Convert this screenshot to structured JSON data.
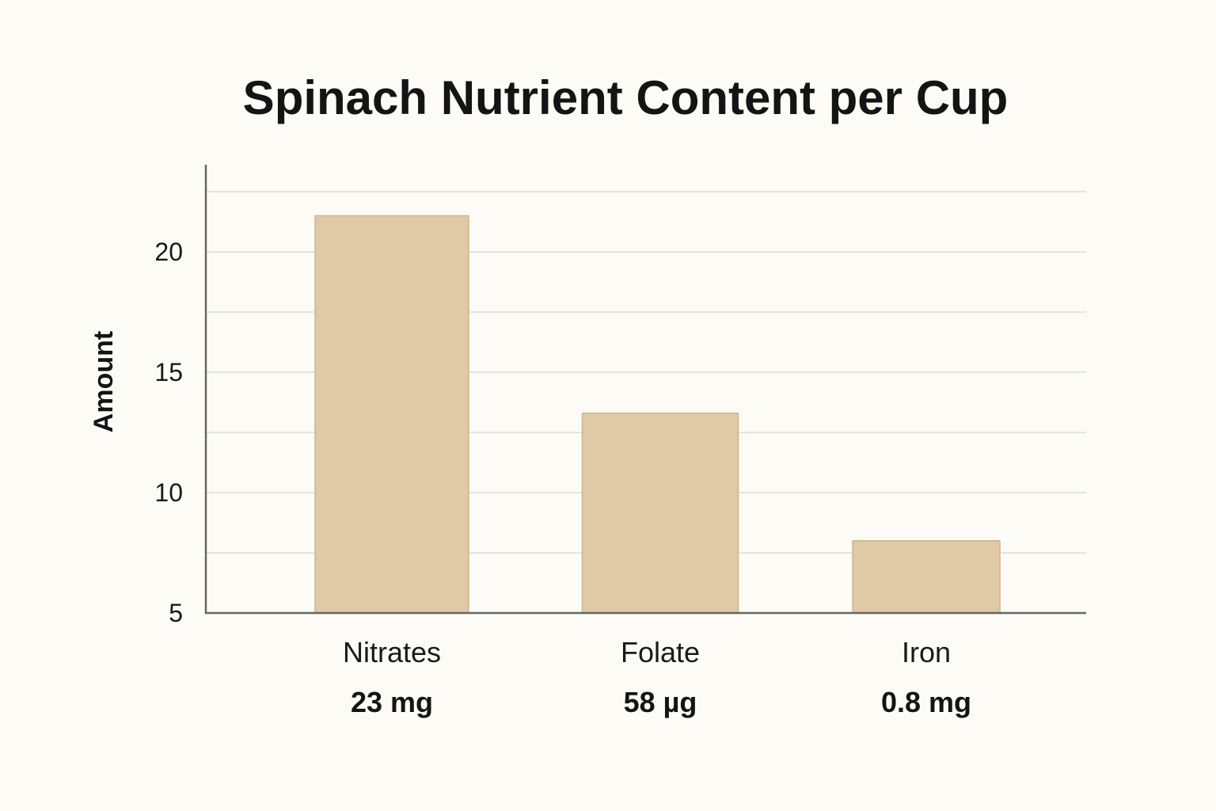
{
  "chart_data": {
    "type": "bar",
    "title": "Spinach Nutrient Content per Cup",
    "xlabel": "",
    "ylabel": "Amount",
    "categories": [
      "Nitrates",
      "Folate",
      "Iron"
    ],
    "values": [
      21.5,
      13.3,
      8.0
    ],
    "data_labels": [
      "23 mg",
      "58 µg",
      "0.8 mg"
    ],
    "y_ticks": [
      5,
      10,
      15,
      20
    ],
    "ylim": [
      5,
      23.5
    ],
    "grid": true,
    "legend": "none",
    "colors": {
      "bar_fill": "#dfc9a7",
      "bar_stroke": "#cdb48e",
      "grid": "#e5e3dc",
      "axis": "#666666",
      "background": "#fcfbf6"
    }
  }
}
